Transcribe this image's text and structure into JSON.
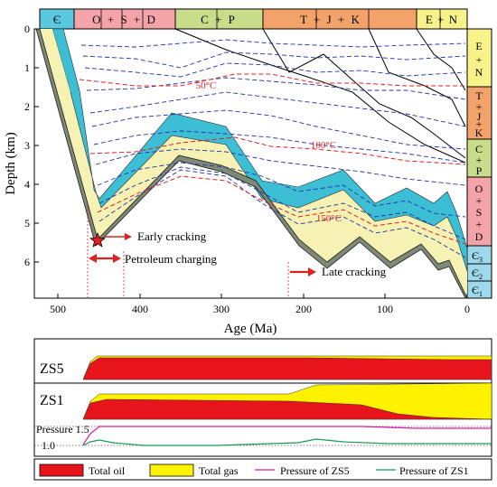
{
  "periods_top": [
    {
      "label": "Є",
      "color": "#5bc8df"
    },
    {
      "label": "O + S + D",
      "color": "#f4a4a8"
    },
    {
      "label": "C + P",
      "color": "#c8dc8a"
    },
    {
      "label": "T + J + K",
      "color": "#f3a36a"
    },
    {
      "label": "E + N",
      "color": "#f8f28a"
    }
  ],
  "periods_right": [
    {
      "label": "E+N",
      "color": "#f8f28a"
    },
    {
      "label": "T+J+K",
      "color": "#f3a36a"
    },
    {
      "label": "C+P",
      "color": "#c8dc8a"
    },
    {
      "label": "O+S+D",
      "color": "#f4a4a8"
    },
    {
      "label": "Є3",
      "color": "#9fd8ec"
    },
    {
      "label": "Є2",
      "color": "#9fd8ec"
    },
    {
      "label": "Є1",
      "color": "#9fd8ec"
    }
  ],
  "axes": {
    "y_label": "Depth (km)",
    "x_label": "Age (Ma)",
    "y_ticks": [
      "0",
      "1",
      "2",
      "3",
      "4",
      "5",
      "6"
    ],
    "x_ticks": [
      "500",
      "400",
      "300",
      "200",
      "100",
      "0"
    ]
  },
  "isotherms": [
    "50°C",
    "100°C",
    "150°C"
  ],
  "events": {
    "early_cracking": "Early cracking",
    "petroleum_charging": "Petroleum charging",
    "late_cracking": "Late cracking"
  },
  "wells": {
    "zs5": "ZS5",
    "zs1": "ZS1"
  },
  "pressure": {
    "label": "Pressure",
    "tick_high": "1.5",
    "tick_low": "1.0"
  },
  "legend": [
    {
      "label": "Total oil",
      "kind": "swatch",
      "color": "#e8141c"
    },
    {
      "label": "Total gas",
      "kind": "swatch",
      "color": "#fff200"
    },
    {
      "label": "Pressure of ZS5",
      "kind": "line",
      "color": "#d81b9c"
    },
    {
      "label": "Pressure of ZS1",
      "kind": "line",
      "color": "#1a9a55"
    }
  ],
  "colors": {
    "cyan_layer": "#3cbfd4",
    "source_layer": "#f6f2b4",
    "base_layer": "#7e8a76",
    "isotherm_blue": "#2230a8",
    "isotherm_red": "#e0201f",
    "arrow_red": "#e0201f"
  }
}
